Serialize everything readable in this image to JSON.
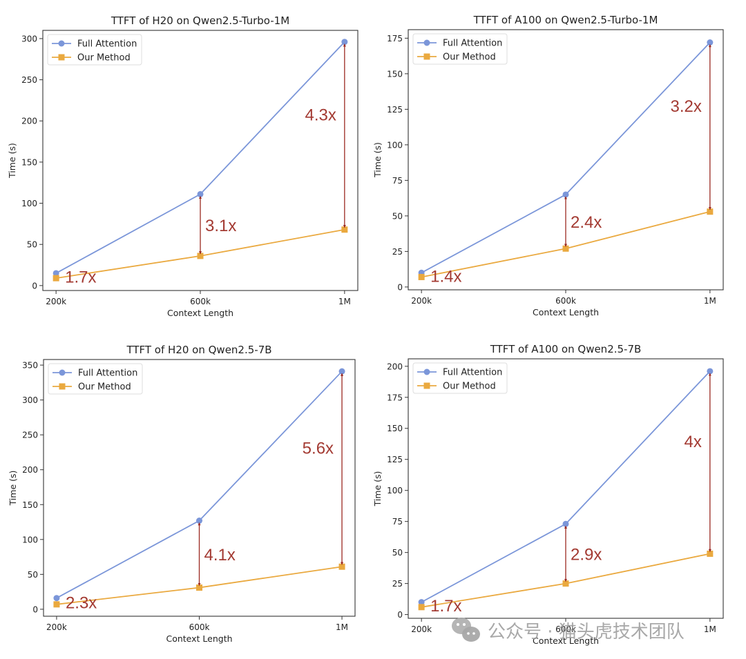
{
  "figure": {
    "colors": {
      "full_attention": "#7b96d9",
      "our_method": "#eaa93f",
      "annotation": "#a33a32",
      "arrow": "#9b2820"
    },
    "watermark": {
      "icon": "wechat-icon",
      "text": "公众号 · 猫头虎技术团队"
    }
  },
  "chart_data": [
    {
      "type": "line",
      "title": "TTFT of H20 on Qwen2.5-Turbo-1M",
      "xlabel": "Context Length",
      "ylabel": "Time (s)",
      "categories": [
        "200k",
        "600k",
        "1M"
      ],
      "ylim": [
        -6,
        310
      ],
      "yticks": [
        0,
        50,
        100,
        150,
        200,
        250,
        300
      ],
      "grid": false,
      "legend_position": "top-left",
      "series": [
        {
          "name": "Full Attention",
          "marker": "circle",
          "values": [
            15,
            111,
            296
          ]
        },
        {
          "name": "Our Method",
          "marker": "square",
          "values": [
            9,
            36,
            68
          ]
        }
      ],
      "annotations": [
        {
          "text": "1.7x",
          "category": "200k"
        },
        {
          "text": "3.1x",
          "category": "600k"
        },
        {
          "text": "4.3x",
          "category": "1M"
        }
      ]
    },
    {
      "type": "line",
      "title": "TTFT of A100 on Qwen2.5-Turbo-1M",
      "xlabel": "Context Length",
      "ylabel": "Time (s)",
      "categories": [
        "200k",
        "600k",
        "1M"
      ],
      "ylim": [
        -2,
        181
      ],
      "yticks": [
        0,
        25,
        50,
        75,
        100,
        125,
        150,
        175
      ],
      "grid": false,
      "legend_position": "top-left",
      "series": [
        {
          "name": "Full Attention",
          "marker": "circle",
          "values": [
            10,
            65,
            172
          ]
        },
        {
          "name": "Our Method",
          "marker": "square",
          "values": [
            7,
            27,
            53
          ]
        }
      ],
      "annotations": [
        {
          "text": "1.4x",
          "category": "200k"
        },
        {
          "text": "2.4x",
          "category": "600k"
        },
        {
          "text": "3.2x",
          "category": "1M"
        }
      ]
    },
    {
      "type": "line",
      "title": "TTFT of H20 on Qwen2.5-7B",
      "xlabel": "Context Length",
      "ylabel": "Time (s)",
      "categories": [
        "200k",
        "600k",
        "1M"
      ],
      "ylim": [
        -10,
        358
      ],
      "yticks": [
        0,
        50,
        100,
        150,
        200,
        250,
        300,
        350
      ],
      "grid": false,
      "legend_position": "top-left",
      "series": [
        {
          "name": "Full Attention",
          "marker": "circle",
          "values": [
            16,
            127,
            341
          ]
        },
        {
          "name": "Our Method",
          "marker": "square",
          "values": [
            7,
            31,
            61
          ]
        }
      ],
      "annotations": [
        {
          "text": "2.3x",
          "category": "200k"
        },
        {
          "text": "4.1x",
          "category": "600k"
        },
        {
          "text": "5.6x",
          "category": "1M"
        }
      ]
    },
    {
      "type": "line",
      "title": "TTFT of A100 on Qwen2.5-7B",
      "xlabel": "Context Length",
      "ylabel": "Time (s)",
      "categories": [
        "200k",
        "600k",
        "1M"
      ],
      "ylim": [
        -3,
        206
      ],
      "yticks": [
        0,
        25,
        50,
        75,
        100,
        125,
        150,
        175,
        200
      ],
      "grid": false,
      "legend_position": "top-left",
      "series": [
        {
          "name": "Full Attention",
          "marker": "circle",
          "values": [
            10,
            73,
            196
          ]
        },
        {
          "name": "Our Method",
          "marker": "square",
          "values": [
            6,
            25,
            49
          ]
        }
      ],
      "annotations": [
        {
          "text": "1.7x",
          "category": "200k"
        },
        {
          "text": "2.9x",
          "category": "600k"
        },
        {
          "text": "4x",
          "category": "1M"
        }
      ]
    }
  ]
}
